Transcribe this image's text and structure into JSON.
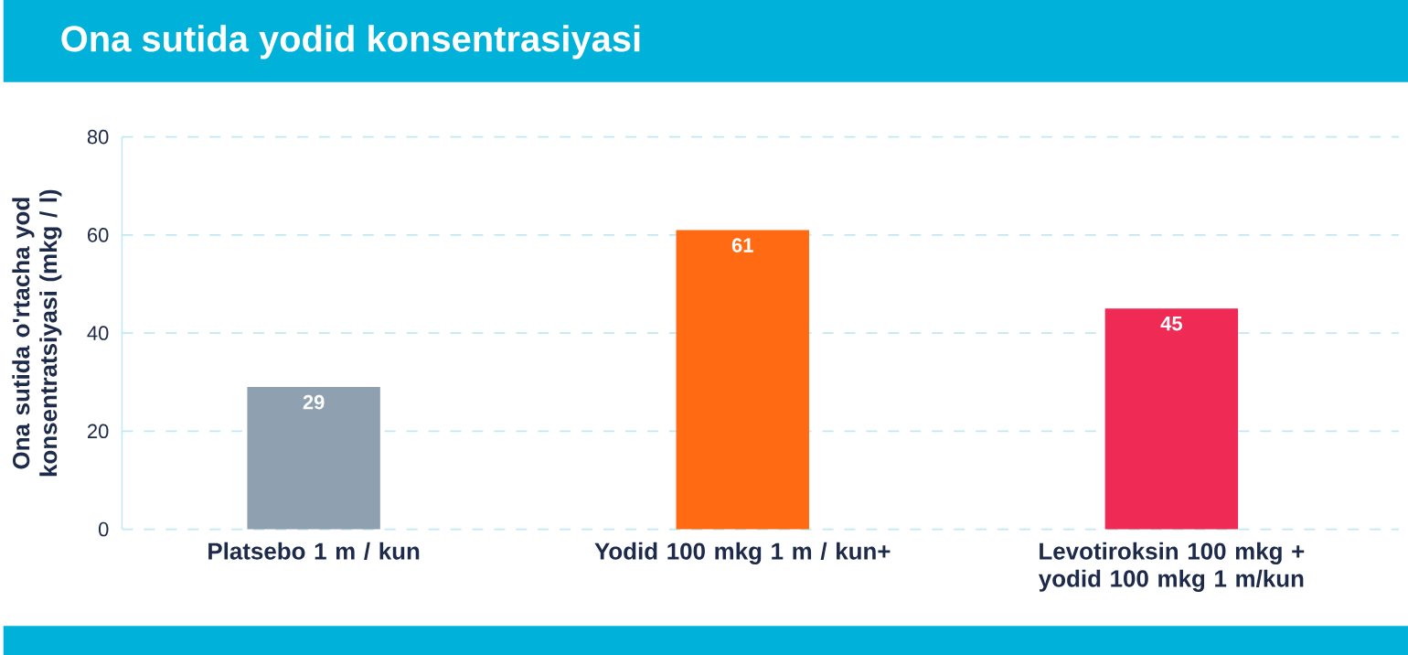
{
  "chart_data": {
    "type": "bar",
    "title": "Ona sutida yodid konsentrasiyasi",
    "ylabel": "Ona sutida o'rtacha yod konsentratsiyasi (mkg / l)",
    "categories": [
      "Platsebo 1 m / kun",
      "Yodid 100 mkg 1 m / kun+",
      "Levotiroksin 100 mkg + yodid 100 mkg 1 m/kun"
    ],
    "values": [
      29,
      61,
      45
    ],
    "colors": [
      "#8fa0b0",
      "#ff6a12",
      "#ee2a55"
    ],
    "ylim": [
      0,
      80
    ],
    "yticks": [
      0,
      20,
      40,
      60,
      80
    ],
    "grid": "y",
    "data_labels": true
  }
}
